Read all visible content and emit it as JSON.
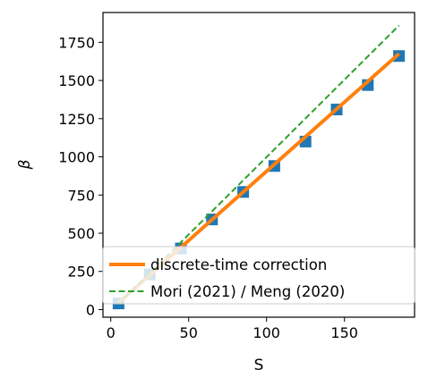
{
  "chart_data": {
    "type": "line",
    "xlabel": "S",
    "ylabel": "β",
    "xlim": [
      -5,
      195
    ],
    "ylim": [
      -50,
      1945
    ],
    "xticks": [
      0,
      50,
      100,
      150
    ],
    "yticks": [
      0,
      250,
      500,
      750,
      1000,
      1250,
      1500,
      1750
    ],
    "grid": false,
    "legend_position": "lower-right",
    "markers": {
      "x": [
        5,
        25,
        45,
        65,
        85,
        105,
        125,
        145,
        165,
        185
      ],
      "y": [
        40,
        230,
        400,
        590,
        770,
        940,
        1100,
        1310,
        1470,
        1660
      ],
      "color": "#1f77b4"
    },
    "series": [
      {
        "name": "discrete-time correction",
        "x": [
          5,
          185
        ],
        "y": [
          45,
          1675
        ],
        "color": "#ff7f0e",
        "style": "solid"
      },
      {
        "name": "Mori (2021) / Meng (2020)",
        "x": [
          5,
          185
        ],
        "y": [
          35,
          1860
        ],
        "color": "#2ca02c",
        "style": "dashed"
      }
    ]
  }
}
